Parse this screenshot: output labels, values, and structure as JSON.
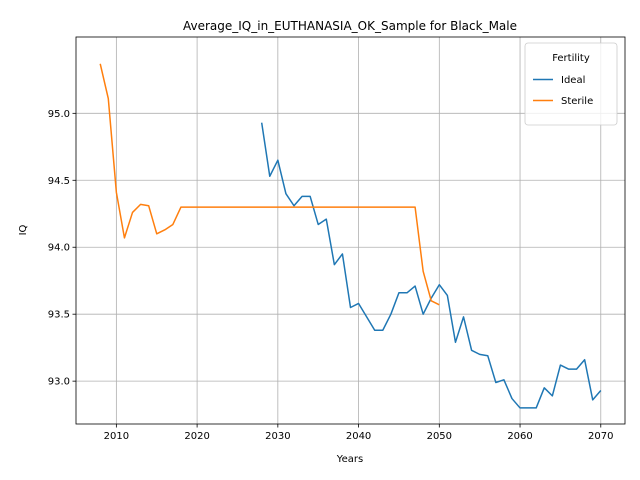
{
  "chart_data": {
    "type": "line",
    "title": "Average_IQ_in_EUTHANASIA_OK_Sample for Black_Male",
    "xlabel": "Years",
    "ylabel": "IQ",
    "xlim": [
      2005.0,
      2073.0
    ],
    "ylim": [
      92.68,
      95.57
    ],
    "xticks": [
      2010,
      2020,
      2030,
      2040,
      2050,
      2060,
      2070
    ],
    "yticks": [
      93.0,
      93.5,
      94.0,
      94.5,
      95.0
    ],
    "ytick_labels": [
      "93.0",
      "93.5",
      "94.0",
      "94.5",
      "95.0"
    ],
    "grid": true,
    "legend": {
      "title": "Fertility",
      "placement": "top-right"
    },
    "series": [
      {
        "name": "Ideal",
        "color": "#1f77b4",
        "x": [
          2028,
          2029,
          2030,
          2031,
          2032,
          2033,
          2034,
          2035,
          2036,
          2037,
          2038,
          2039,
          2040,
          2041,
          2042,
          2043,
          2044,
          2045,
          2046,
          2047,
          2048,
          2049,
          2050,
          2051,
          2052,
          2053,
          2054,
          2055,
          2056,
          2057,
          2058,
          2059,
          2060,
          2061,
          2062,
          2063,
          2064,
          2065,
          2066,
          2067,
          2068,
          2069,
          2070
        ],
        "y": [
          94.93,
          94.53,
          94.65,
          94.4,
          94.31,
          94.38,
          94.38,
          94.17,
          94.21,
          93.87,
          93.95,
          93.55,
          93.58,
          93.48,
          93.38,
          93.38,
          93.5,
          93.66,
          93.66,
          93.71,
          93.5,
          93.62,
          93.72,
          93.64,
          93.29,
          93.48,
          93.23,
          93.2,
          93.19,
          92.99,
          93.01,
          92.87,
          92.8,
          92.8,
          92.8,
          92.95,
          92.89,
          93.12,
          93.09,
          93.09,
          93.16,
          92.86,
          92.93
        ]
      },
      {
        "name": "Sterile",
        "color": "#ff7f0e",
        "x": [
          2008,
          2009,
          2010,
          2011,
          2012,
          2013,
          2014,
          2015,
          2016,
          2017,
          2018,
          2019,
          2020,
          2021,
          2022,
          2023,
          2024,
          2025,
          2026,
          2027,
          2028,
          2029,
          2030,
          2031,
          2032,
          2033,
          2034,
          2035,
          2036,
          2037,
          2038,
          2039,
          2040,
          2041,
          2042,
          2043,
          2044,
          2045,
          2046,
          2047,
          2048,
          2049,
          2050
        ],
        "y": [
          95.37,
          95.11,
          94.41,
          94.07,
          94.26,
          94.32,
          94.31,
          94.1,
          94.13,
          94.17,
          94.3,
          94.3,
          94.3,
          94.3,
          94.3,
          94.3,
          94.3,
          94.3,
          94.3,
          94.3,
          94.3,
          94.3,
          94.3,
          94.3,
          94.3,
          94.3,
          94.3,
          94.3,
          94.3,
          94.3,
          94.3,
          94.3,
          94.3,
          94.3,
          94.3,
          94.3,
          94.3,
          94.3,
          94.3,
          94.3,
          93.82,
          93.6,
          93.57
        ]
      }
    ]
  }
}
